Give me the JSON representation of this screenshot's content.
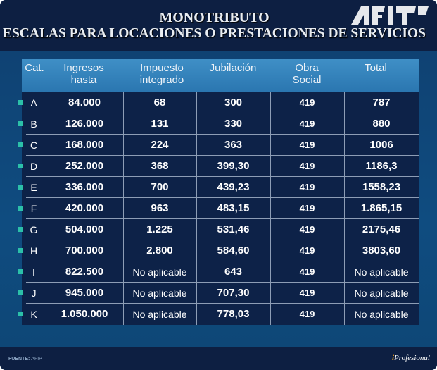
{
  "title": "MONOTRIBUTO",
  "subtitle": "ESCALAS PARA LOCACIONES O PRESTACIONES DE SERVICIOS",
  "logo": "AFIP",
  "colors": {
    "header": "#0d1f42",
    "table_header": "#3f8fc6",
    "row_bg": "#0d2248",
    "bullet": "#2cc0a8"
  },
  "columns": [
    "Cat.",
    "Ingresos hasta",
    "Impuesto integrado",
    "Jubilación",
    "Obra Social",
    "Total"
  ],
  "rows": [
    [
      "A",
      "84.000",
      "68",
      "300",
      "419",
      "787"
    ],
    [
      "B",
      "126.000",
      "131",
      "330",
      "419",
      "880"
    ],
    [
      "C",
      "168.000",
      "224",
      "363",
      "419",
      "1006"
    ],
    [
      "D",
      "252.000",
      "368",
      "399,30",
      "419",
      "1186,3"
    ],
    [
      "E",
      "336.000",
      "700",
      "439,23",
      "419",
      "1558,23"
    ],
    [
      "F",
      "420.000",
      "963",
      "483,15",
      "419",
      "1.865,15"
    ],
    [
      "G",
      "504.000",
      "1.225",
      "531,46",
      "419",
      "2175,46"
    ],
    [
      "H",
      "700.000",
      "2.800",
      "584,60",
      "419",
      "3803,60"
    ],
    [
      "I",
      "822.500",
      "No aplicable",
      "643",
      "419",
      "No aplicable"
    ],
    [
      "J",
      "945.000",
      "No aplicable",
      "707,30",
      "419",
      "No aplicable"
    ],
    [
      "K",
      "1.050.000",
      "No aplicable",
      "778,03",
      "419",
      "No aplicable"
    ]
  ],
  "footer": {
    "source_label": "FUENTE:",
    "source": "AFIP",
    "brand_i": "i",
    "brand": "Profesional"
  }
}
